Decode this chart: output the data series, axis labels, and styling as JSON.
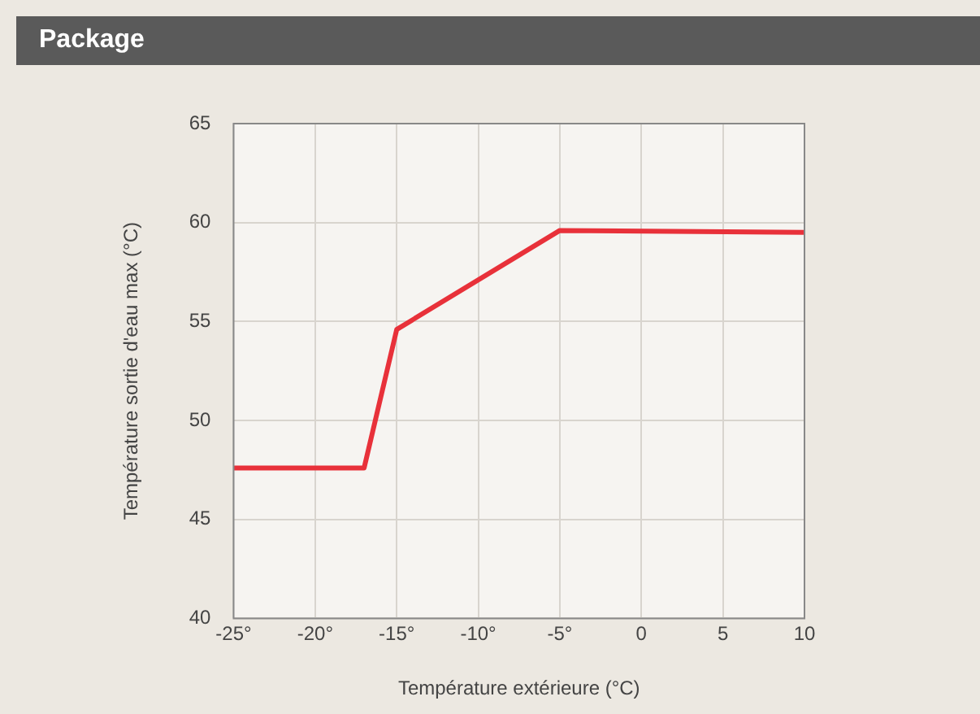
{
  "chart_data": {
    "type": "line",
    "title": "Package",
    "xlabel": "Température extérieure (°C)",
    "ylabel": "Température sortie d'eau max (°C)",
    "x": [
      -25,
      -17,
      -15,
      -5,
      10
    ],
    "series": [
      {
        "color": "#e8313a",
        "values": [
          47.6,
          47.6,
          54.6,
          59.6,
          59.5
        ]
      }
    ],
    "xlim": [
      -25,
      10
    ],
    "xticks": [
      {
        "value": -25,
        "label": "-25°"
      },
      {
        "value": -20,
        "label": "-20°"
      },
      {
        "value": -15,
        "label": "-15°"
      },
      {
        "value": -10,
        "label": "-10°"
      },
      {
        "value": -5,
        "label": "-5°"
      },
      {
        "value": 0,
        "label": "0"
      },
      {
        "value": 5,
        "label": "5"
      },
      {
        "value": 10,
        "label": "10"
      }
    ],
    "ylim": [
      40,
      65
    ],
    "yticks": [
      40,
      45,
      50,
      55,
      60,
      65
    ],
    "grid": true,
    "legend": false,
    "marker": "none",
    "line_style": "solid"
  }
}
